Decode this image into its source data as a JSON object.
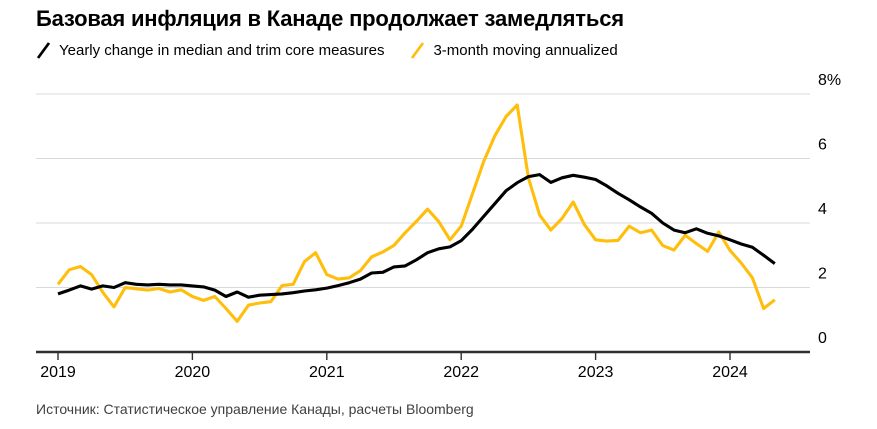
{
  "header": {
    "title": "Базовая инфляция в Канаде продолжает замедляться"
  },
  "legend": {
    "items": [
      {
        "label": "Yearly change in median and trim core measures",
        "color": "#000000"
      },
      {
        "label": "3-month moving annualized",
        "color": "#FFBE0B"
      }
    ]
  },
  "source": {
    "text": "Источник: Статистическое управление Канады, расчеты Bloomberg"
  },
  "chart_data": {
    "type": "line",
    "title": "Базовая инфляция в Канаде продолжает замедляться",
    "x_start": "2019-01",
    "x_end": "2024-05",
    "x_frequency": "monthly",
    "x_tick_labels": [
      "2019",
      "2020",
      "2021",
      "2022",
      "2023",
      "2024"
    ],
    "y_ticks": [
      {
        "value": 0,
        "label": "0"
      },
      {
        "value": 2,
        "label": "2"
      },
      {
        "value": 4,
        "label": "4"
      },
      {
        "value": 6,
        "label": "6"
      },
      {
        "value": 8,
        "label": "8%"
      }
    ],
    "ylim": [
      0,
      8.5
    ],
    "grid": "horizontal",
    "legend_position": "top-left",
    "colors": {
      "gridline": "#D9D9D9",
      "baseline": "#2F2F2F",
      "accent_yellow": "#FFBE0B",
      "accent_black": "#000000"
    },
    "series": [
      {
        "name": "Yearly change in median and trim core measures",
        "color": "#000000",
        "values": [
          1.8,
          1.92,
          2.05,
          1.95,
          2.05,
          2.0,
          2.15,
          2.1,
          2.08,
          2.1,
          2.08,
          2.08,
          2.05,
          2.02,
          1.92,
          1.72,
          1.86,
          1.7,
          1.76,
          1.78,
          1.8,
          1.84,
          1.89,
          1.93,
          1.98,
          2.06,
          2.15,
          2.26,
          2.45,
          2.47,
          2.64,
          2.67,
          2.86,
          3.08,
          3.2,
          3.26,
          3.45,
          3.8,
          4.2,
          4.6,
          5.0,
          5.25,
          5.44,
          5.5,
          5.26,
          5.4,
          5.48,
          5.42,
          5.35,
          5.15,
          4.92,
          4.72,
          4.5,
          4.3,
          4.0,
          3.78,
          3.7,
          3.82,
          3.68,
          3.6,
          3.48,
          3.35,
          3.25,
          3.0,
          2.74
        ]
      },
      {
        "name": "3-month moving annualized",
        "color": "#FFBE0B",
        "values": [
          2.1,
          2.55,
          2.65,
          2.4,
          1.85,
          1.4,
          2.0,
          1.96,
          1.92,
          1.97,
          1.86,
          1.93,
          1.72,
          1.6,
          1.72,
          1.35,
          0.95,
          1.45,
          1.52,
          1.56,
          2.06,
          2.1,
          2.8,
          3.08,
          2.4,
          2.26,
          2.3,
          2.52,
          2.95,
          3.1,
          3.31,
          3.7,
          4.05,
          4.43,
          4.04,
          3.48,
          3.9,
          4.9,
          5.9,
          6.7,
          7.3,
          7.66,
          5.4,
          4.25,
          3.78,
          4.14,
          4.65,
          3.95,
          3.48,
          3.44,
          3.46,
          3.9,
          3.7,
          3.78,
          3.3,
          3.16,
          3.62,
          3.36,
          3.12,
          3.72,
          3.15,
          2.76,
          2.3,
          1.35,
          1.62
        ]
      }
    ]
  }
}
